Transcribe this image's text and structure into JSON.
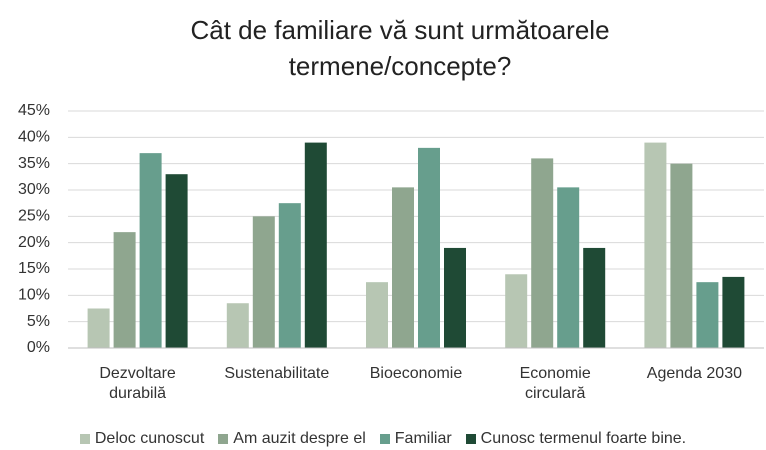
{
  "chart_data": {
    "type": "bar",
    "title": "Cât de familiare vă sunt următoarele termene/concepte?",
    "categories": [
      "Dezvoltare durabilă",
      "Sustenabilitate",
      "Bioeconomie",
      "Economie circulară",
      "Agenda 2030"
    ],
    "series": [
      {
        "name": "Deloc cunoscut",
        "color": "#b7c6b3",
        "values": [
          7.5,
          8.5,
          12.5,
          14,
          39
        ]
      },
      {
        "name": "Am auzit despre el",
        "color": "#8fa68f",
        "values": [
          22,
          25,
          30.5,
          36,
          35
        ]
      },
      {
        "name": "Familiar",
        "color": "#679e8d",
        "values": [
          37,
          27.5,
          38,
          30.5,
          12.5
        ]
      },
      {
        "name": "Cunosc termenul foarte bine.",
        "color": "#1f4a35",
        "values": [
          33,
          39,
          19,
          19,
          13.5
        ]
      }
    ],
    "ylim": [
      0,
      45
    ],
    "yticks": [
      {
        "value": 0,
        "label": "0%"
      },
      {
        "value": 5,
        "label": "5%"
      },
      {
        "value": 10,
        "label": "10%"
      },
      {
        "value": 15,
        "label": "15%"
      },
      {
        "value": 20,
        "label": "20%"
      },
      {
        "value": 25,
        "label": "25%"
      },
      {
        "value": 30,
        "label": "30%"
      },
      {
        "value": 35,
        "label": "35%"
      },
      {
        "value": 40,
        "label": "40%"
      },
      {
        "value": 45,
        "label": "45%"
      }
    ],
    "grid": true,
    "legend": "bottom"
  }
}
